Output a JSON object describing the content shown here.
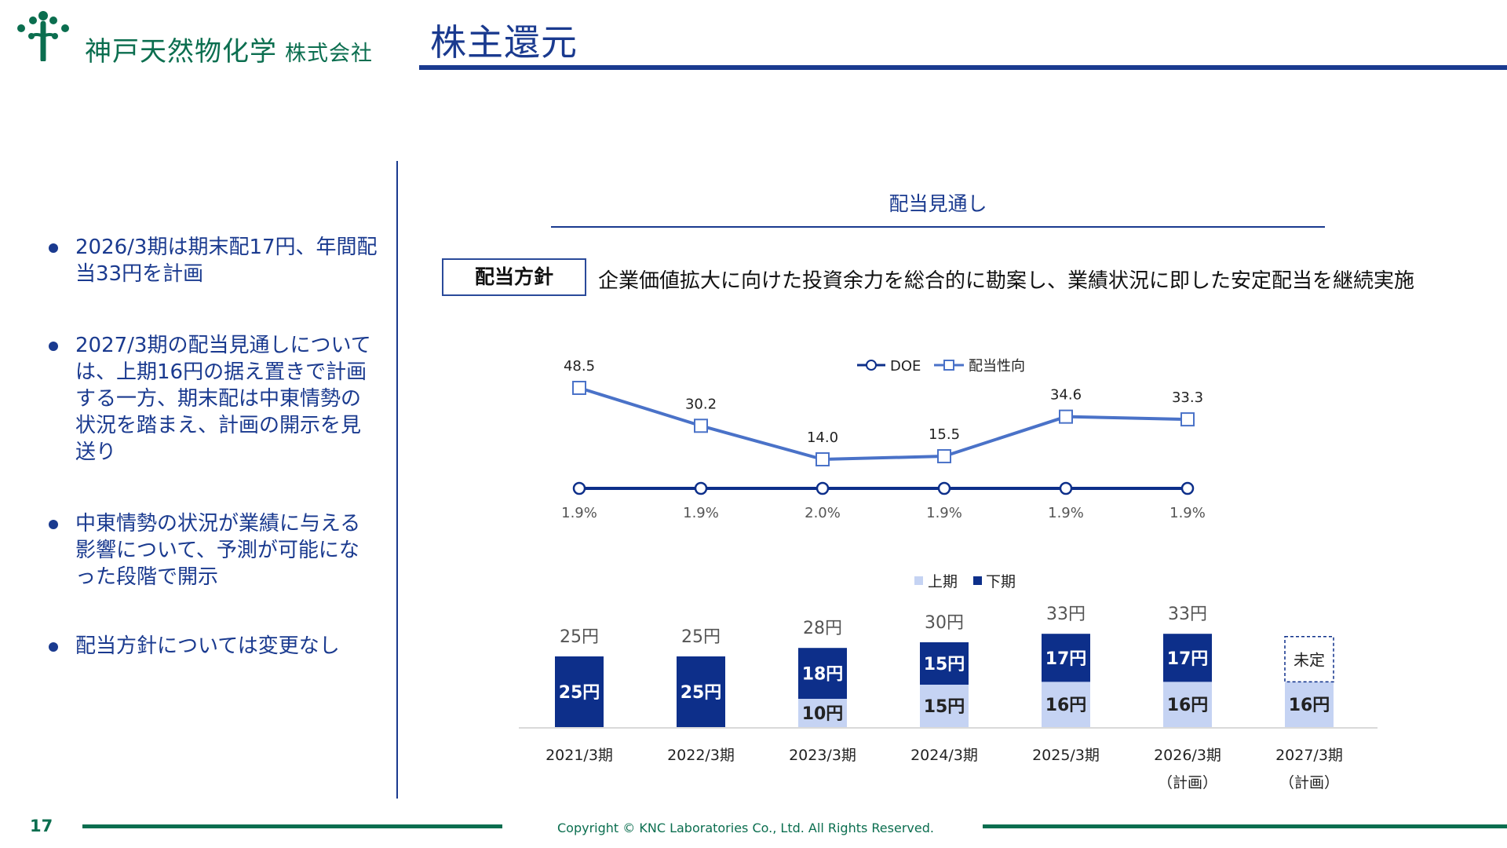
{
  "header": {
    "company_name": "神戸天然物化学",
    "company_suffix": "株式会社",
    "page_title": "株主還元"
  },
  "bullets": [
    "2026/3期は期末配17円、年間配当33円を計画",
    "2027/3期の配当見通しについては、上期16円の据え置きで計画する一方、期末配は中東情勢の状況を踏まえ、計画の開示を見送り",
    "中東情勢の状況が業績に与える影響について、予測が可能になった段階で開示",
    "配当方針については変更なし"
  ],
  "section_heading": "配当見通し",
  "policy": {
    "label": "配当方針",
    "text": "企業価値拡大に向けた投資余力を総合的に勘案し、業績状況に即した安定配当を継続実施"
  },
  "colors": {
    "brand_green": "#0b6e4f",
    "navy": "#1a3a8f",
    "doe_line": "#0d2f8a",
    "payout_line": "#4a72c8",
    "bar_second_half": "#0d2f8a",
    "bar_first_half": "#c5d3f3"
  },
  "chart_data": [
    {
      "type": "line",
      "categories": [
        "2021/3期",
        "2022/3期",
        "2023/3期",
        "2024/3期",
        "2025/3期",
        "2026/3期"
      ],
      "legend_position": "top",
      "grid": false,
      "series": [
        {
          "name": "DOE",
          "marker": "circle",
          "values": [
            1.9,
            1.9,
            2.0,
            1.9,
            1.9,
            1.9
          ],
          "labels": [
            "1.9%",
            "1.9%",
            "2.0%",
            "1.9%",
            "1.9%",
            "1.9%"
          ]
        },
        {
          "name": "配当性向",
          "marker": "square",
          "values": [
            48.5,
            30.2,
            14.0,
            15.5,
            34.6,
            33.3
          ],
          "labels": [
            "48.5",
            "30.2",
            "14.0",
            "15.5",
            "34.6",
            "33.3"
          ]
        }
      ]
    },
    {
      "type": "bar",
      "stacked": true,
      "unit": "円",
      "categories": [
        "2021/3期",
        "2022/3期",
        "2023/3期",
        "2024/3期",
        "2025/3期",
        "2026/3期",
        "2027/3期"
      ],
      "category_notes": [
        "",
        "",
        "",
        "",
        "",
        "（計画）",
        "（計画）"
      ],
      "legend_position": "top",
      "series": [
        {
          "name": "上期",
          "values": [
            0,
            0,
            10,
            15,
            16,
            16,
            16
          ],
          "labels": [
            "",
            "",
            "10円",
            "15円",
            "16円",
            "16円",
            "16円"
          ]
        },
        {
          "name": "下期",
          "values": [
            25,
            25,
            18,
            15,
            17,
            17,
            null
          ],
          "labels": [
            "25円",
            "25円",
            "18円",
            "15円",
            "17円",
            "17円",
            "未定"
          ]
        }
      ],
      "totals": [
        "25円",
        "25円",
        "28円",
        "30円",
        "33円",
        "33円",
        ""
      ]
    }
  ],
  "footer": {
    "page_number": "17",
    "copyright": "Copyright © KNC Laboratories Co., Ltd. All Rights Reserved."
  }
}
